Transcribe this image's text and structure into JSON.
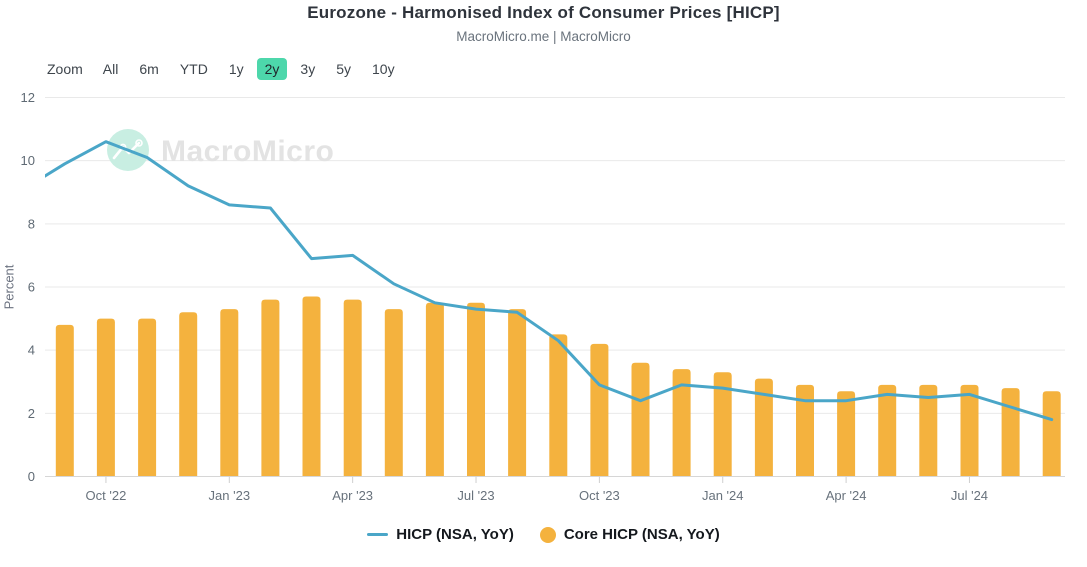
{
  "title": "Eurozone - Harmonised Index of Consumer Prices [HICP]",
  "subtitle": "MacroMicro.me | MacroMicro",
  "watermark": "MacroMicro",
  "toolbar": {
    "zoom_label": "Zoom",
    "ranges": [
      "All",
      "6m",
      "YTD",
      "1y",
      "2y",
      "3y",
      "5y",
      "10y"
    ],
    "selected": "2y"
  },
  "legend": [
    {
      "label": "HICP (NSA, YoY)",
      "marker": "line",
      "color": "#4aa6c8"
    },
    {
      "label": "Core HICP (NSA, YoY)",
      "marker": "circle",
      "color": "#f4b23e"
    }
  ],
  "colors": {
    "line": "#4aa6c8",
    "bar": "#f4b23e",
    "range_active_bg": "#4dd7ab",
    "watermark_circle": "#c8eee2",
    "gridline": "#e9e9e9",
    "axis_line": "#d6d6d6"
  },
  "chart_data": {
    "type": "combo",
    "x": [
      "Aug '22",
      "Sep '22",
      "Oct '22",
      "Nov '22",
      "Dec '22",
      "Jan '23",
      "Feb '23",
      "Mar '23",
      "Apr '23",
      "May '23",
      "Jun '23",
      "Jul '23",
      "Aug '23",
      "Sep '23",
      "Oct '23",
      "Nov '23",
      "Dec '23",
      "Jan '24",
      "Feb '24",
      "Mar '24",
      "Apr '24",
      "May '24",
      "Jun '24",
      "Jul '24",
      "Aug '24",
      "Sep '24"
    ],
    "series": [
      {
        "name": "HICP (NSA, YoY)",
        "type": "line",
        "color": "#4aa6c8",
        "values": [
          9.1,
          9.9,
          10.6,
          10.1,
          9.2,
          8.6,
          8.5,
          6.9,
          7.0,
          6.1,
          5.5,
          5.3,
          5.2,
          4.3,
          2.9,
          2.4,
          2.9,
          2.8,
          2.6,
          2.4,
          2.4,
          2.6,
          2.5,
          2.6,
          2.2,
          1.8
        ]
      },
      {
        "name": "Core HICP (NSA, YoY)",
        "type": "bar",
        "color": "#f4b23e",
        "values": [
          null,
          4.8,
          5.0,
          5.0,
          5.2,
          5.3,
          5.6,
          5.7,
          5.6,
          5.3,
          5.5,
          5.5,
          5.3,
          4.5,
          4.2,
          3.6,
          3.4,
          3.3,
          3.1,
          2.9,
          2.7,
          2.9,
          2.9,
          2.9,
          2.8,
          2.7
        ]
      }
    ],
    "ylabel": "Percent",
    "ylim": [
      0,
      12
    ],
    "yticks": [
      0,
      2,
      4,
      6,
      8,
      10,
      12
    ],
    "xticks": [
      "Oct '22",
      "Jan '23",
      "Apr '23",
      "Jul '23",
      "Oct '23",
      "Jan '24",
      "Apr '24",
      "Jul '24"
    ],
    "grid": true,
    "legend_position": "bottom"
  }
}
